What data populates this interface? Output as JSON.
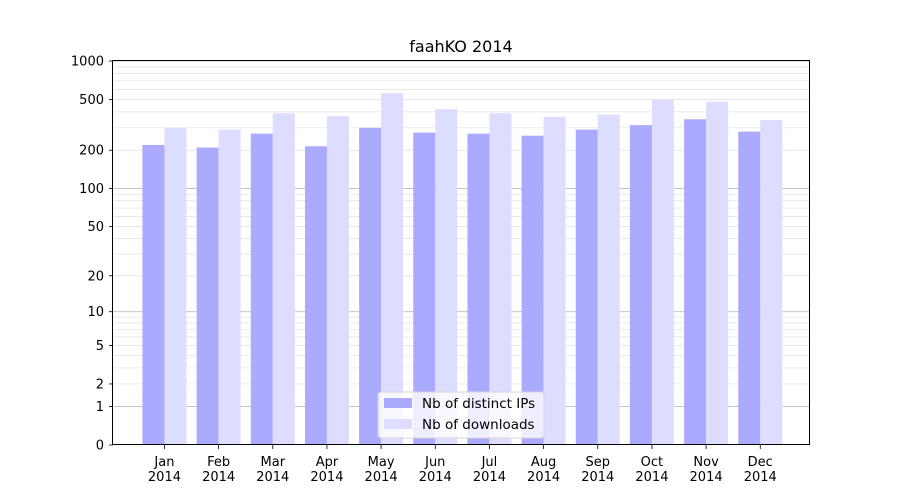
{
  "chart_data": {
    "type": "bar",
    "title": "faahKO 2014",
    "xlabel": "",
    "ylabel": "",
    "y_scale": "symlog",
    "ylim": [
      0,
      1000
    ],
    "y_ticks": [
      0,
      1,
      2,
      5,
      10,
      20,
      50,
      100,
      200,
      500,
      1000
    ],
    "y_tick_labels": [
      "0",
      "1",
      "2",
      "5",
      "10",
      "20",
      "50",
      "100",
      "200",
      "500",
      "1000"
    ],
    "grid": true,
    "legend_position": "bottom-center",
    "categories": [
      "Jan 2014",
      "Feb 2014",
      "Mar 2014",
      "Apr 2014",
      "May 2014",
      "Jun 2014",
      "Jul 2014",
      "Aug 2014",
      "Sep 2014",
      "Oct 2014",
      "Nov 2014",
      "Dec 2014"
    ],
    "category_lines": [
      [
        "Jan",
        "2014"
      ],
      [
        "Feb",
        "2014"
      ],
      [
        "Mar",
        "2014"
      ],
      [
        "Apr",
        "2014"
      ],
      [
        "May",
        "2014"
      ],
      [
        "Jun",
        "2014"
      ],
      [
        "Jul",
        "2014"
      ],
      [
        "Aug",
        "2014"
      ],
      [
        "Sep",
        "2014"
      ],
      [
        "Oct",
        "2014"
      ],
      [
        "Nov",
        "2014"
      ],
      [
        "Dec",
        "2014"
      ]
    ],
    "series": [
      {
        "name": "Nb of distinct IPs",
        "color": "#aaaaff",
        "values": [
          220,
          210,
          270,
          215,
          300,
          275,
          270,
          260,
          290,
          315,
          350,
          280
        ]
      },
      {
        "name": "Nb of downloads",
        "color": "#ddddff",
        "values": [
          300,
          290,
          390,
          370,
          560,
          420,
          390,
          365,
          380,
          500,
          480,
          345
        ]
      }
    ]
  }
}
